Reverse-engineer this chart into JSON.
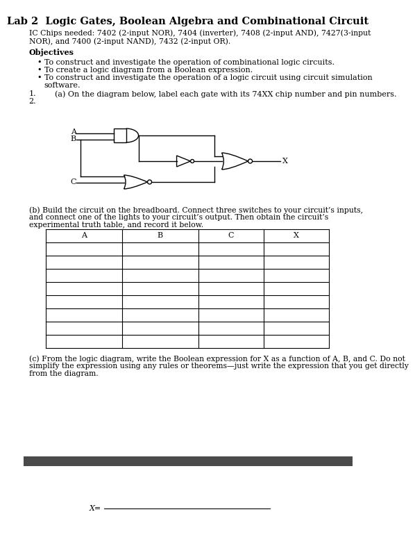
{
  "title": "Lab 2  Logic Gates, Boolean Algebra and Combinational Circuit",
  "ic_chips_line1": "IC Chips needed: 7402 (2-input NOR), 7404 (inverter), 7408 (2-input AND), 7427(3-input",
  "ic_chips_line2": "NOR), and 7400 (2-input NAND), 7432 (2-input OR).",
  "objectives_title": "Objectives",
  "objectives": [
    "To construct and investigate the operation of combinational logic circuits.",
    "To create a logic diagram from a Boolean expression.",
    "To construct and investigate the operation of a logic circuit using circuit simulation",
    "software."
  ],
  "item1_num": "1.",
  "item2_num": "2.",
  "item1_text": "(a) On the diagram below, label each gate with its 74XX chip number and pin numbers.",
  "part_b_line1": "(b) Build the circuit on the breadboard. Connect three switches to your circuit’s inputs,",
  "part_b_line2": "and connect one of the lights to your circuit’s output. Then obtain the circuit’s",
  "part_b_line3": "experimental truth table, and record it below.",
  "table_headers": [
    "A",
    "B",
    "C",
    "X"
  ],
  "table_rows": 8,
  "part_c_line1": "(c) From the logic diagram, write the Boolean expression for X as a function of A, B, and C. Do not",
  "part_c_line2": "simplify the expression using any rules or theorems—just write the expression that you get directly",
  "part_c_line3": "from the diagram.",
  "footer_bar_color": "#4a4a4a",
  "answer_label": "X=",
  "bg_color": "#ffffff",
  "text_color": "#000000",
  "title_fontsize": 10.5,
  "body_fontsize": 8.0,
  "small_fontsize": 7.8
}
